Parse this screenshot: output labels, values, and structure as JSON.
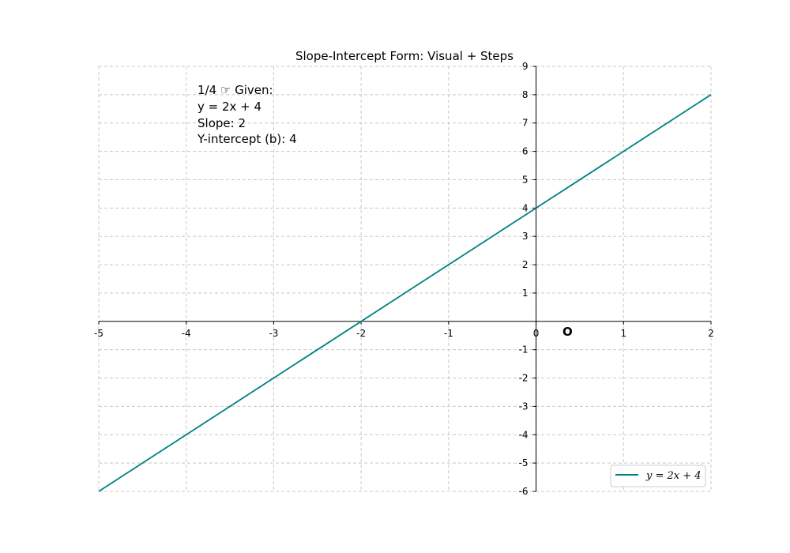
{
  "chart_data": {
    "type": "line",
    "title": "Slope-Intercept Form: Visual + Steps",
    "xlabel": "",
    "ylabel": "",
    "xlim": [
      -5,
      2
    ],
    "ylim": [
      -6,
      9
    ],
    "x_ticks": [
      "-5",
      "-4",
      "-3",
      "-2",
      "-1",
      "0",
      "1",
      "2"
    ],
    "y_ticks": [
      "-6",
      "-5",
      "-4",
      "-3",
      "-2",
      "-1",
      "1",
      "2",
      "3",
      "4",
      "5",
      "6",
      "7",
      "8",
      "9"
    ],
    "grid": true,
    "legend_position": "lower-right",
    "series": [
      {
        "name": "y = 2x + 4",
        "color": "#008080",
        "x": [
          -5,
          2
        ],
        "y": [
          -6,
          8
        ]
      }
    ],
    "annotations": {
      "step_lines": [
        "1/4 ☞  Given:",
        "y = 2x + 4",
        "Slope: 2",
        "Y-intercept (b): 4"
      ],
      "origin_label": "O"
    }
  }
}
